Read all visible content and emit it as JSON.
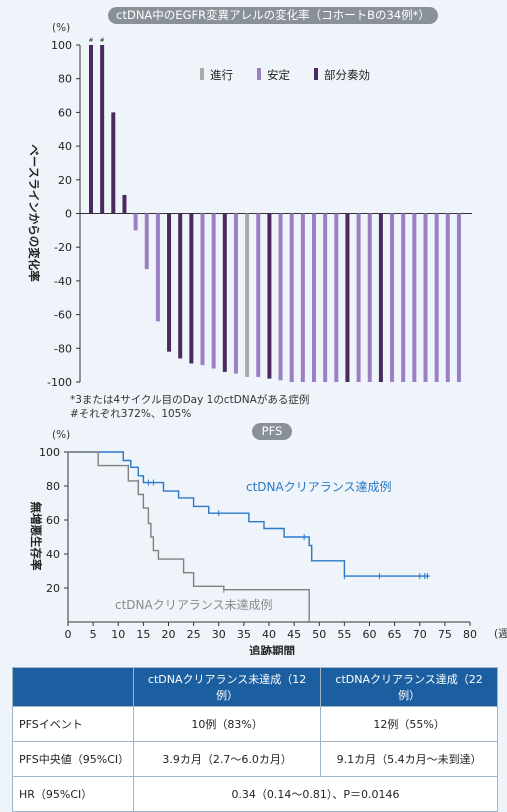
{
  "chart_data": [
    {
      "type": "bar",
      "title": "ctDNA中のEGFR変異アレルの変化率（コホートBの34例*）",
      "ylabel": "ベースラインからの変化率",
      "yunit": "(%)",
      "ylim": [
        -100,
        100
      ],
      "yticks": [
        "100",
        "80",
        "60",
        "40",
        "20",
        "0",
        "-20",
        "-40",
        "-60",
        "-80",
        "-100"
      ],
      "legend_position": "top",
      "colors": {
        "進行": "#a9a9a9",
        "安定": "#9b7fc6",
        "部分奏効": "#4a2a5e"
      },
      "legend": [
        "進行",
        "安定",
        "部分奏効"
      ],
      "values": [
        100,
        100,
        60,
        11,
        -10,
        -33,
        -64,
        -82,
        -86,
        -89,
        -90,
        -92,
        -94,
        -95,
        -97,
        -97,
        -98,
        -99,
        -100,
        -100,
        -100,
        -100,
        -100,
        -100,
        -100,
        -100,
        -100,
        -100,
        -100,
        -100,
        -100,
        -100,
        -100,
        -100
      ],
      "response": [
        "部分奏効",
        "部分奏効",
        "部分奏効",
        "部分奏効",
        "安定",
        "安定",
        "安定",
        "部分奏効",
        "部分奏効",
        "部分奏効",
        "安定",
        "安定",
        "部分奏効",
        "安定",
        "進行",
        "安定",
        "部分奏効",
        "安定",
        "安定",
        "安定",
        "安定",
        "安定",
        "安定",
        "部分奏効",
        "安定",
        "安定",
        "部分奏効",
        "安定",
        "安定",
        "安定",
        "安定",
        "安定",
        "安定",
        "安定"
      ],
      "bar_marks": [
        "#",
        "#",
        "",
        "",
        "",
        "",
        "",
        "",
        "",
        "",
        "",
        "",
        "",
        "",
        "",
        "",
        "",
        "",
        "",
        "",
        "",
        "",
        "",
        "",
        "",
        "",
        "",
        "",
        "",
        "",
        "",
        "",
        "",
        ""
      ],
      "footnotes": [
        "*3または4サイクル目のDay 1のctDNAがある症例",
        "#それぞれ372%、105%"
      ]
    },
    {
      "type": "line",
      "title": "PFS",
      "ylabel": "無増悪生存率",
      "yunit": "(%)",
      "xlabel": "追跡期間",
      "xunit": "(週)",
      "xlim": [
        0,
        80
      ],
      "ylim": [
        0,
        100
      ],
      "xticks": [
        "0",
        "5",
        "10",
        "15",
        "20",
        "25",
        "30",
        "35",
        "40",
        "45",
        "50",
        "55",
        "60",
        "65",
        "70",
        "75",
        "80"
      ],
      "yticks": [
        "20",
        "40",
        "60",
        "80",
        "100"
      ],
      "series": [
        {
          "name": "ctDNAクリアランス達成例",
          "color": "#2a78c8",
          "steps": [
            [
              0,
              100
            ],
            [
              11,
              100
            ],
            [
              11,
              95
            ],
            [
              12.5,
              95
            ],
            [
              12.5,
              91
            ],
            [
              14,
              91
            ],
            [
              14,
              86
            ],
            [
              15,
              86
            ],
            [
              15,
              82
            ],
            [
              19,
              82
            ],
            [
              19,
              77
            ],
            [
              22,
              77
            ],
            [
              22,
              73
            ],
            [
              25,
              73
            ],
            [
              25,
              68
            ],
            [
              28,
              68
            ],
            [
              28,
              64
            ],
            [
              36,
              64
            ],
            [
              36,
              59
            ],
            [
              39,
              59
            ],
            [
              39,
              55
            ],
            [
              43,
              55
            ],
            [
              43,
              50
            ],
            [
              48,
              50
            ],
            [
              48,
              45
            ],
            [
              48.5,
              45
            ],
            [
              48.5,
              36
            ],
            [
              55,
              36
            ],
            [
              55,
              27
            ],
            [
              72,
              27
            ]
          ],
          "censored": [
            [
              14,
              82
            ],
            [
              16,
              82
            ],
            [
              17,
              82
            ],
            [
              30,
              64
            ],
            [
              47,
              50
            ],
            [
              55,
              27
            ],
            [
              62,
              27
            ],
            [
              70,
              27
            ],
            [
              71,
              27
            ],
            [
              71.5,
              27
            ]
          ]
        },
        {
          "name": "ctDNAクリアランス未達成例",
          "color": "#808080",
          "steps": [
            [
              0,
              100
            ],
            [
              6,
              100
            ],
            [
              6,
              92
            ],
            [
              12,
              92
            ],
            [
              12,
              83
            ],
            [
              14,
              83
            ],
            [
              14,
              75
            ],
            [
              15,
              75
            ],
            [
              15,
              67
            ],
            [
              16,
              67
            ],
            [
              16,
              58
            ],
            [
              16.5,
              58
            ],
            [
              16.5,
              50
            ],
            [
              17,
              50
            ],
            [
              17,
              42
            ],
            [
              18,
              42
            ],
            [
              18,
              37
            ],
            [
              23,
              37
            ],
            [
              23,
              29
            ],
            [
              25,
              29
            ],
            [
              25,
              21
            ],
            [
              31,
              21
            ],
            [
              31,
              19
            ],
            [
              48,
              19
            ],
            [
              48,
              0
            ]
          ],
          "censored": [
            [
              31,
              19
            ]
          ]
        }
      ]
    }
  ],
  "table": {
    "headers": [
      "",
      "ctDNAクリアランス未達成（12例）",
      "ctDNAクリアランス達成（22例）"
    ],
    "rows": [
      {
        "label": "PFSイベント",
        "a": "10例（83%）",
        "b": "12例（55%）"
      },
      {
        "label": "PFS中央値（95%CI）",
        "a": "3.9カ月（2.7〜6.0カ月）",
        "b": "9.1カ月（5.4カ月〜未到達）"
      }
    ],
    "hr": {
      "label": "HR（95%CI）",
      "value": "0.34（0.14〜0.81）、P＝0.0146"
    }
  }
}
